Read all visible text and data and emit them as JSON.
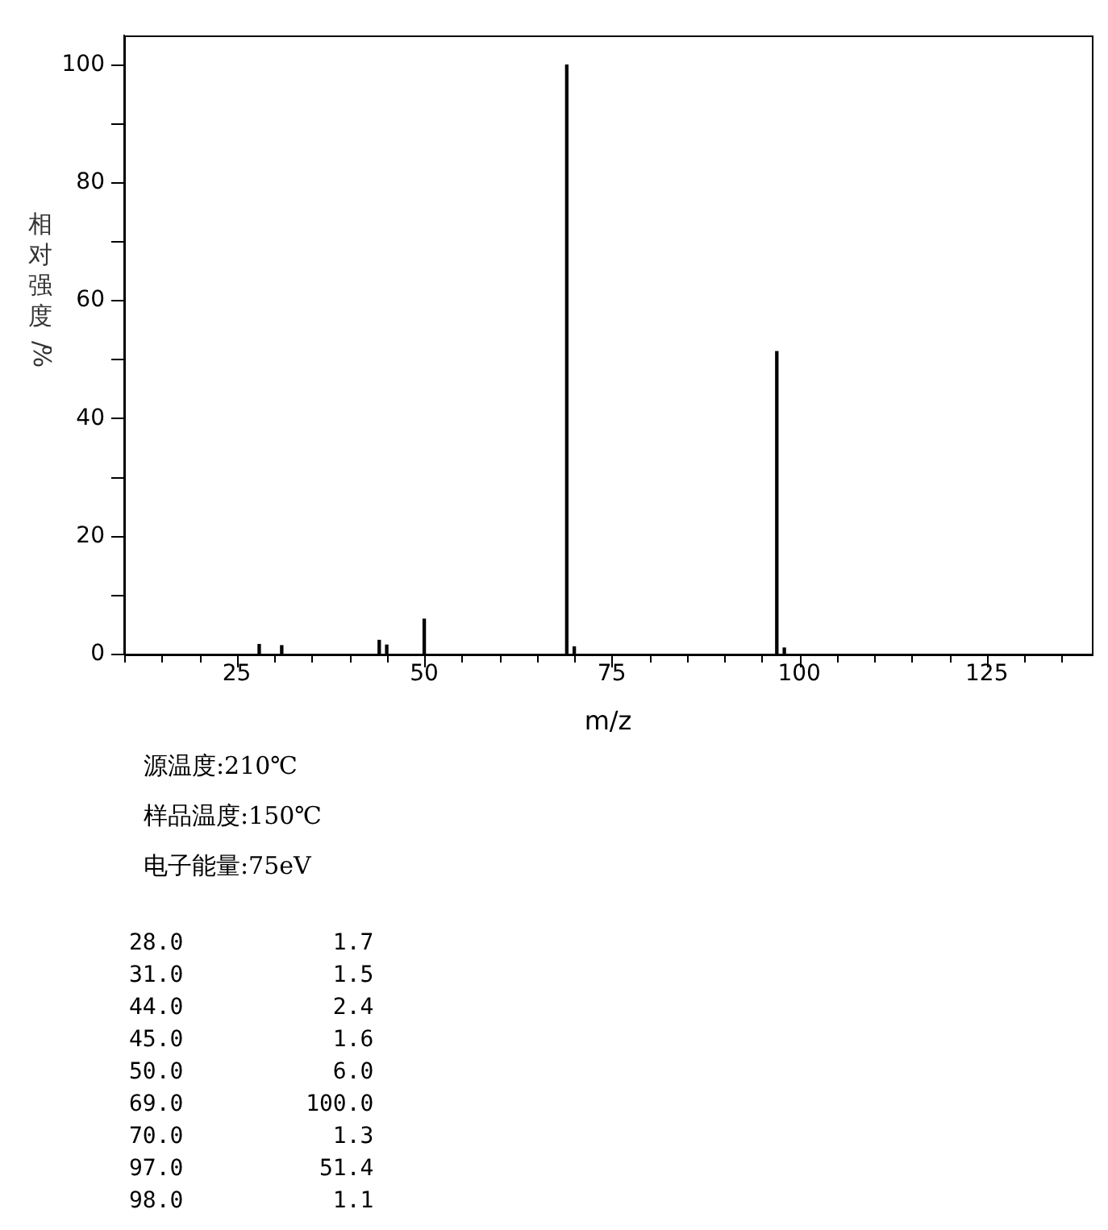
{
  "chart_data": {
    "type": "bar",
    "xlabel": "m/z",
    "ylabel": "相对强度/%",
    "x": [
      28,
      31,
      44,
      45,
      50,
      69,
      70,
      97,
      98
    ],
    "values": [
      1.7,
      1.5,
      2.4,
      1.6,
      6.0,
      100.0,
      1.3,
      51.4,
      1.1
    ],
    "color": "#000000",
    "xlim": [
      10,
      139
    ],
    "xticks": [
      {
        "value": 10,
        "label": null
      },
      {
        "value": 15,
        "label": null
      },
      {
        "value": 20,
        "label": null
      },
      25,
      {
        "value": 30,
        "label": null
      },
      {
        "value": 35,
        "label": null
      },
      {
        "value": 40,
        "label": null
      },
      {
        "value": 45,
        "label": null
      },
      50,
      {
        "value": 55,
        "label": null
      },
      {
        "value": 60,
        "label": null
      },
      {
        "value": 65,
        "label": null
      },
      {
        "value": 70,
        "label": null
      },
      75,
      {
        "value": 80,
        "label": null
      },
      {
        "value": 85,
        "label": null
      },
      {
        "value": 90,
        "label": null
      },
      {
        "value": 95,
        "label": null
      },
      100,
      {
        "value": 105,
        "label": null
      },
      {
        "value": 110,
        "label": null
      },
      {
        "value": 115,
        "label": null
      },
      {
        "value": 120,
        "label": null
      },
      125,
      {
        "value": 130,
        "label": null
      },
      {
        "value": 135,
        "label": null
      }
    ],
    "ylim": [
      0,
      105
    ],
    "yticks": [
      0,
      {
        "value": 10,
        "label": null
      },
      20,
      {
        "value": 30,
        "label": null
      },
      40,
      {
        "value": 50,
        "label": null
      },
      60,
      {
        "value": 70,
        "label": null
      },
      80,
      {
        "value": 90,
        "label": null
      },
      100
    ],
    "grid": false,
    "legend": false,
    "annotations": [
      "源温度:210℃",
      "样品温度:150℃",
      "电子能量:75eV",
      "28.0           1.7",
      "31.0           1.5",
      "44.0           2.4",
      "45.0           1.6",
      "50.0           6.0",
      "69.0         100.0",
      "70.0           1.3",
      "97.0          51.4",
      "98.0           1.1"
    ]
  }
}
